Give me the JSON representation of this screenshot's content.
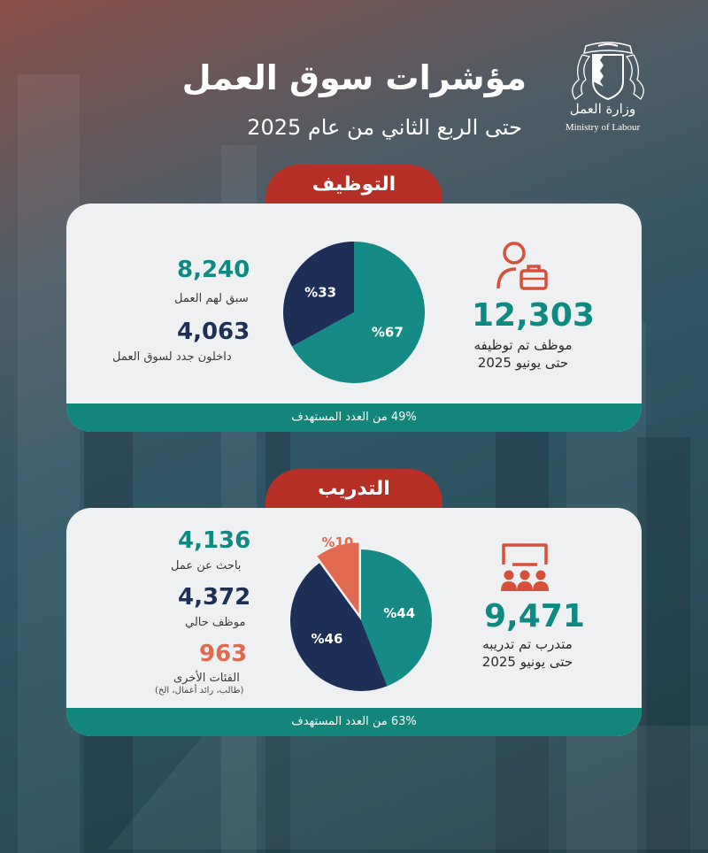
{
  "header": {
    "title": "مؤشرات سوق العمل",
    "subtitle": "حتى الربع الثاني من عام 2025",
    "logo_text_ar": "وزارة العمل",
    "logo_text_en": "Ministry of Labour"
  },
  "colors": {
    "teal": "#168a85",
    "navy": "#1e2f57",
    "orange": "#e0694f",
    "red_tab": "#b52f27",
    "bar_green": "#13867c"
  },
  "employment": {
    "tab_label": "التوظيف",
    "total_value": "12,303",
    "total_label_line1": "موظف تم توظيفه",
    "total_label_line2": "حتى يونيو 2025",
    "items": [
      {
        "value": "8,240",
        "label": "سبق لهم العمل"
      },
      {
        "value": "4,063",
        "label": "داخلون جدد لسوق العمل"
      }
    ],
    "bar_text": "49% من العدد المستهدف"
  },
  "training": {
    "tab_label": "التدريب",
    "total_value": "9,471",
    "total_label_line1": "متدرب تم تدريبه",
    "total_label_line2": "حتى يونيو 2025",
    "items": [
      {
        "value": "4,136",
        "label": "باحث عن عمل"
      },
      {
        "value": "4,372",
        "label": "موظف حالي"
      },
      {
        "value": "963",
        "label": "الفئات الأخرى",
        "sublabel": "(طالب، رائد أعمال، الخ)"
      }
    ],
    "bar_text": "63% من العدد المستهدف"
  },
  "chart_data": [
    {
      "type": "pie",
      "labels": [
        "%67",
        "%33"
      ],
      "values": [
        67,
        33
      ],
      "colors": [
        "#168a85",
        "#1e2f57"
      ]
    },
    {
      "type": "pie",
      "labels": [
        "%44",
        "%46",
        "%10"
      ],
      "values": [
        44,
        46,
        10
      ],
      "colors": [
        "#168a85",
        "#1e2f57",
        "#e0694f"
      ]
    }
  ]
}
